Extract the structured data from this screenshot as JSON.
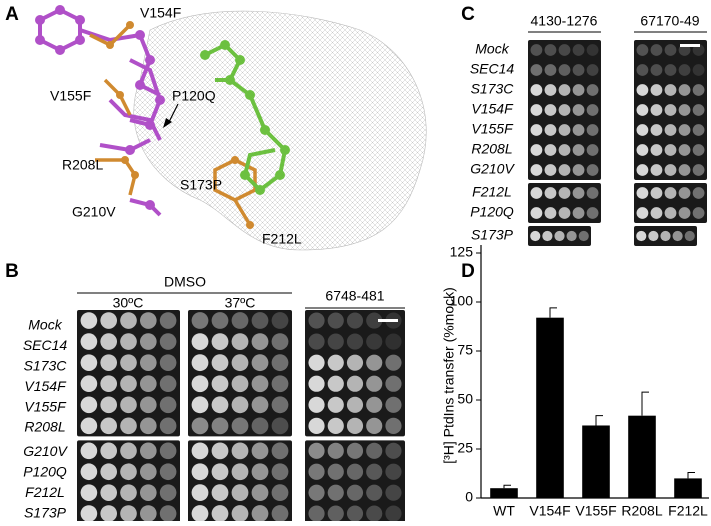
{
  "panel_labels": [
    "A",
    "B",
    "C",
    "D"
  ],
  "panel_a": {
    "labels": [
      "V154F",
      "P120Q",
      "V155F",
      "R208L",
      "S173P",
      "G210V",
      "F212L"
    ]
  },
  "panel_b": {
    "group_title": "DMSO",
    "columns": [
      "30ºC",
      "37ºC",
      "6748-481"
    ],
    "rows": [
      "Mock",
      "SEC14",
      "S173C",
      "V154F",
      "V155F",
      "R208L",
      "G210V",
      "P120Q",
      "F212L",
      "S173P"
    ]
  },
  "panel_c": {
    "columns": [
      "4130-1276",
      "67170-49"
    ],
    "rows": [
      "Mock",
      "SEC14",
      "S173C",
      "V154F",
      "V155F",
      "R208L",
      "G210V",
      "F212L",
      "P120Q",
      "S173P"
    ]
  },
  "chart_data": {
    "type": "bar",
    "ylabel": "[³H] PtdIns transfer (%mock)",
    "categories": [
      "WT",
      "V154F",
      "V155F",
      "R208L",
      "F212L"
    ],
    "values": [
      5,
      92,
      37,
      42,
      10
    ],
    "errors": [
      1.5,
      5,
      5,
      12,
      3
    ],
    "color": "#000000",
    "ylim": [
      0,
      125
    ],
    "yticks": [
      0,
      25,
      50,
      75,
      100,
      125
    ]
  }
}
